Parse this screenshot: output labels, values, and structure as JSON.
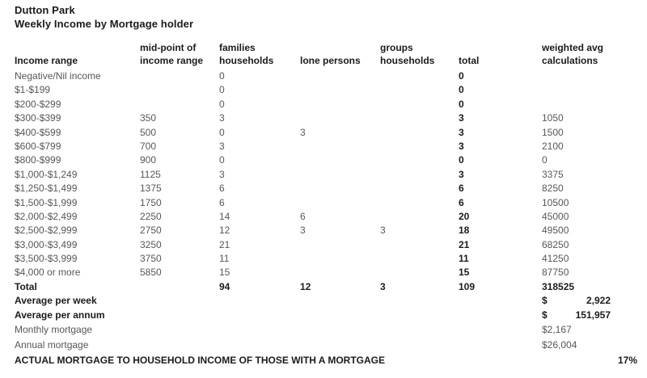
{
  "title": "Dutton Park",
  "subtitle": "Weekly Income by Mortgage holder",
  "colors": {
    "background": "#ffffff",
    "text_regular": "#575757",
    "text_bold": "#1b1b1b"
  },
  "table": {
    "headers": {
      "range": "Income range",
      "mid": "mid-point of\nincome range",
      "families": "families\nhouseholds",
      "lone": "lone persons",
      "groups": "groups\nhouseholds",
      "total": "total",
      "weighted": "weighted avg\ncalculations"
    },
    "rows": [
      {
        "range": "Negative/Nil income",
        "mid": "",
        "families": "0",
        "lone": "",
        "groups": "",
        "total": "0",
        "weighted": ""
      },
      {
        "range": "$1-$199",
        "mid": "",
        "families": "0",
        "lone": "",
        "groups": "",
        "total": "0",
        "weighted": ""
      },
      {
        "range": "$200-$299",
        "mid": "",
        "families": "0",
        "lone": "",
        "groups": "",
        "total": "0",
        "weighted": ""
      },
      {
        "range": "$300-$399",
        "mid": "350",
        "families": "3",
        "lone": "",
        "groups": "",
        "total": "3",
        "weighted": "1050"
      },
      {
        "range": "$400-$599",
        "mid": "500",
        "families": "0",
        "lone": "3",
        "groups": "",
        "total": "3",
        "weighted": "1500"
      },
      {
        "range": "$600-$799",
        "mid": "700",
        "families": "3",
        "lone": "",
        "groups": "",
        "total": "3",
        "weighted": "2100"
      },
      {
        "range": "$800-$999",
        "mid": "900",
        "families": "0",
        "lone": "",
        "groups": "",
        "total": "0",
        "weighted": "0"
      },
      {
        "range": "$1,000-$1,249",
        "mid": "1125",
        "families": "3",
        "lone": "",
        "groups": "",
        "total": "3",
        "weighted": "3375"
      },
      {
        "range": "$1,250-$1,499",
        "mid": "1375",
        "families": "6",
        "lone": "",
        "groups": "",
        "total": "6",
        "weighted": "8250"
      },
      {
        "range": "$1,500-$1,999",
        "mid": "1750",
        "families": "6",
        "lone": "",
        "groups": "",
        "total": "6",
        "weighted": "10500"
      },
      {
        "range": "$2,000-$2,499",
        "mid": "2250",
        "families": "14",
        "lone": "6",
        "groups": "",
        "total": "20",
        "weighted": "45000"
      },
      {
        "range": "$2,500-$2,999",
        "mid": "2750",
        "families": "12",
        "lone": "3",
        "groups": "3",
        "total": "18",
        "weighted": "49500"
      },
      {
        "range": "$3,000-$3,499",
        "mid": "3250",
        "families": "21",
        "lone": "",
        "groups": "",
        "total": "21",
        "weighted": "68250"
      },
      {
        "range": "$3,500-$3,999",
        "mid": "3750",
        "families": "11",
        "lone": "",
        "groups": "",
        "total": "11",
        "weighted": "41250"
      },
      {
        "range": "$4,000 or more",
        "mid": "5850",
        "families": "15",
        "lone": "",
        "groups": "",
        "total": "15",
        "weighted": "87750"
      },
      {
        "range": "Total",
        "mid": "",
        "families": "94",
        "lone": "12",
        "groups": "3",
        "total": "109",
        "weighted": "318525",
        "bold": true
      }
    ]
  },
  "summary": {
    "avg_week": {
      "label": "Average per week",
      "currency": "$",
      "value": "2,922"
    },
    "avg_annum": {
      "label": "Average per annum",
      "currency": "$",
      "value": "151,957"
    },
    "monthly": {
      "label": "Monthly mortgage",
      "value": "$2,167"
    },
    "annual": {
      "label": "Annual mortgage",
      "value": "$26,004"
    },
    "actual": {
      "label": "ACTUAL MORTGAGE TO HOUSEHOLD INCOME OF THOSE WITH A MORTGAGE",
      "value": "17%"
    }
  }
}
